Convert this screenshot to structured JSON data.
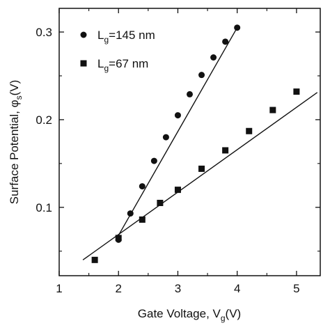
{
  "chart_data": {
    "type": "scatter",
    "xlabel": "Gate Voltage, V",
    "xlabel_sub": "g",
    "xlabel_unit": "(V)",
    "ylabel": "Surface Potential, ",
    "ylabel_symbol": "φ",
    "ylabel_sub": "s",
    "ylabel_unit": "(V)",
    "xlim": [
      1,
      5.4
    ],
    "ylim": [
      0.022,
      0.327
    ],
    "xticks": [
      1,
      2,
      3,
      4,
      5
    ],
    "xtick_labels": [
      "1",
      "2",
      "3",
      "4",
      "5"
    ],
    "yticks": [
      0.1,
      0.2,
      0.3
    ],
    "ytick_labels": [
      "0.1",
      "0.2",
      "0.3"
    ],
    "legend_position": "top-left",
    "series": [
      {
        "name": "L",
        "name_sub": "g",
        "name_rest": "=145 nm",
        "marker": "circle",
        "x": [
          2.0,
          2.2,
          2.4,
          2.6,
          2.8,
          3.0,
          3.2,
          3.4,
          3.6,
          3.8,
          4.0
        ],
        "y": [
          0.063,
          0.093,
          0.124,
          0.153,
          0.18,
          0.205,
          0.229,
          0.251,
          0.271,
          0.289,
          0.305
        ],
        "fit": {
          "x": [
            2.0,
            4.0
          ],
          "y": [
            0.068,
            0.305
          ]
        }
      },
      {
        "name": "L",
        "name_sub": "g",
        "name_rest": "=67 nm",
        "marker": "square",
        "x": [
          1.6,
          2.0,
          2.4,
          2.7,
          3.0,
          3.4,
          3.8,
          4.2,
          4.6,
          5.0
        ],
        "y": [
          0.04,
          0.065,
          0.086,
          0.105,
          0.12,
          0.144,
          0.165,
          0.187,
          0.211,
          0.232
        ],
        "fit": {
          "x": [
            1.4,
            5.35
          ],
          "y": [
            0.04,
            0.231
          ]
        }
      }
    ]
  }
}
